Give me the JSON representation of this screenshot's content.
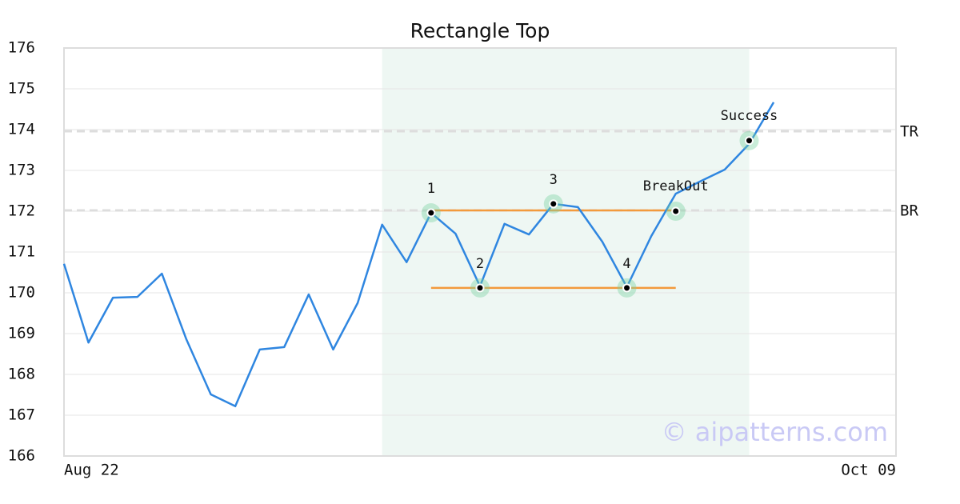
{
  "chart_data": {
    "type": "line",
    "title": "Rectangle Top",
    "categories": [
      "Aug 22",
      null,
      null,
      null,
      null,
      null,
      null,
      null,
      null,
      null,
      null,
      null,
      null,
      null,
      null,
      null,
      null,
      null,
      null,
      null,
      null,
      null,
      null,
      null,
      null,
      null,
      null,
      null,
      null,
      null,
      null,
      null,
      null,
      null,
      "Oct 09"
    ],
    "values": [
      170.71,
      168.78,
      169.88,
      169.9,
      170.47,
      168.86,
      167.51,
      167.22,
      168.61,
      168.67,
      169.96,
      168.61,
      169.75,
      171.67,
      170.75,
      171.96,
      171.45,
      170.16,
      171.69,
      171.43,
      172.18,
      172.1,
      171.25,
      170.14,
      171.39,
      172.43,
      172.73,
      173.02,
      173.65,
      174.67,
      null,
      null,
      null,
      null,
      null
    ],
    "color": "#2f86e0",
    "ylim": [
      166,
      176
    ],
    "yticks": [
      166,
      167,
      168,
      169,
      170,
      171,
      172,
      173,
      174,
      175,
      176
    ],
    "grid": true,
    "highlight": [
      13,
      28
    ],
    "levels": [
      {
        "label": "TR",
        "value": 173.96
      },
      {
        "label": "BR",
        "value": 172.02
      }
    ],
    "pattern_lines": [
      {
        "x": [
          15,
          25
        ],
        "y": 172.02
      },
      {
        "x": [
          15,
          25
        ],
        "y": 170.12
      }
    ],
    "points": [
      {
        "label": "1",
        "x": 15,
        "y": 171.96
      },
      {
        "label": "2",
        "x": 17,
        "y": 170.12
      },
      {
        "label": "3",
        "x": 20,
        "y": 172.18
      },
      {
        "label": "4",
        "x": 23,
        "y": 170.12
      },
      {
        "label": "BreakOut",
        "x": 25,
        "y": 172.0
      },
      {
        "label": "Success",
        "x": 28,
        "y": 173.73
      }
    ],
    "watermark": "© aipatterns.com"
  }
}
